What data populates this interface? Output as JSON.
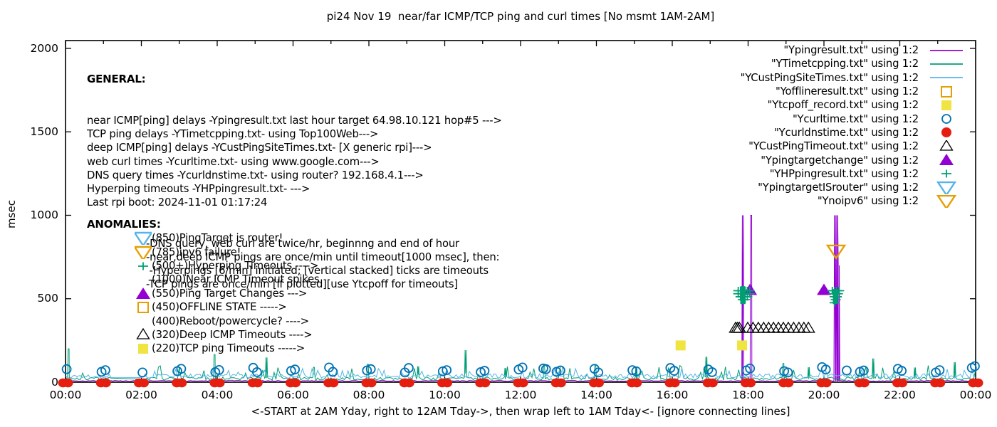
{
  "title": "pi24 Nov 19  near/far ICMP/TCP ping and curl times [No msmt 1AM-2AM]",
  "ylabel": "msec",
  "xlabel": "<-START at 2AM Yday, right to 12AM Tday->, then wrap left to 1AM Tday<- [ignore connecting lines]",
  "general": {
    "heading": "GENERAL:",
    "lines": [
      "near ICMP[ping] delays -Ypingresult.txt last hour target 64.98.10.121 hop#5 --->",
      "TCP ping delays -YTimetcpping.txt- using Top100Web--->",
      "deep ICMP[ping] delays -YCustPingSiteTimes.txt- [X generic rpi]--->",
      "web curl times -Ycurltime.txt- using www.google.com--->",
      "DNS query times -Ycurldnstime.txt- using router? 192.168.4.1--->",
      "Hyperping timeouts -YHPpingresult.txt- --->",
      "Last rpi boot: 2024-11-01 01:17:24"
    ],
    "notes": [
      "-DNS query, web curl are twice/hr, beginnng and end of hour",
      "-near,deep ICMP pings are once/min until timeout[1000 msec], then:",
      " -Hyperpings [6/min] initiated; [vertical stacked] ticks are timeouts",
      "-TCP pings are once/min [if plotted][use Ytcpoff for timeouts]"
    ]
  },
  "anomalies": {
    "heading": "ANOMALIES:",
    "items": [
      {
        "marker": "tri-down-open",
        "color": "#56b4e9",
        "text": "(850)PingTarget is router!"
      },
      {
        "marker": "tri-down-open",
        "color": "#e69f00",
        "text": "(785)ipv6 failure!"
      },
      {
        "marker": "plus",
        "color": "#009e73",
        "text": "(500+)Hyperping Timeouts ---->"
      },
      {
        "marker": "none",
        "color": "",
        "text": "(1000)Near ICMP Timeout spikes"
      },
      {
        "marker": "tri-up-fill",
        "color": "#9400d3",
        "text": "(550)Ping Target Changes --->"
      },
      {
        "marker": "square-open",
        "color": "#e69f00",
        "text": "(450)OFFLINE STATE ----->"
      },
      {
        "marker": "none",
        "color": "",
        "text": "(400)Reboot/powercycle? ---->"
      },
      {
        "marker": "tri-up-open",
        "color": "#000000",
        "text": "(320)Deep ICMP Timeouts ---->"
      },
      {
        "marker": "square-fill",
        "color": "#f0e442",
        "text": "(220)TCP ping Timeouts ----->"
      }
    ]
  },
  "legend": {
    "rows": [
      {
        "label": "\"Ypingresult.txt\" using 1:2"
      },
      {
        "label": "\"YTimetcpping.txt\" using 1:2"
      },
      {
        "label": "\"YCustPingSiteTimes.txt\" using 1:2"
      },
      {
        "label": "\"Yofflineresult.txt\" using 1:2"
      },
      {
        "label": "\"Ytcpoff_record.txt\" using 1:2"
      },
      {
        "label": "\"Ycurltime.txt\" using 1:2"
      },
      {
        "label": "\"Ycurldnstime.txt\" using 1:2"
      },
      {
        "label": "\"YCustPingTimeout.txt\" using 1:2"
      },
      {
        "label": "\"Ypingtargetchange\" using 1:2"
      },
      {
        "label": "\"YHPpingresult.txt\" using 1:2"
      },
      {
        "label": "\"YpingtargetISrouter\" using 1:2"
      },
      {
        "label": "\"Ynoipv6\" using 1:2"
      }
    ]
  },
  "chart_data": {
    "type": "line",
    "x_axis": {
      "range_hours": [
        0,
        24
      ],
      "tick_labels": [
        "00:00",
        "02:00",
        "04:00",
        "06:00",
        "08:00",
        "10:00",
        "12:00",
        "14:00",
        "16:00",
        "18:00",
        "20:00",
        "22:00",
        "00:00"
      ],
      "major_tick_every_hours": 2,
      "minor_tick_every_hours": 1
    },
    "y_axis": {
      "label": "msec",
      "range": [
        0,
        2000
      ],
      "ticks": [
        0,
        500,
        1000,
        1500,
        2000
      ]
    },
    "grid": false,
    "legend_position": "top-right",
    "series": [
      {
        "name": "Ypingresult.txt",
        "style": "line",
        "color": "#9400d3",
        "baseline_msec": [
          5,
          11
        ],
        "spikes": [
          [
            17.86,
            1000
          ],
          [
            18.08,
            1000
          ],
          [
            20.29,
            1000
          ],
          [
            20.35,
            1000
          ],
          [
            20.39,
            700
          ]
        ]
      },
      {
        "name": "YTimetcpping.txt",
        "style": "line",
        "color": "#009e73",
        "baseline_msec": [
          12,
          30
        ],
        "minor_spike_msec": [
          40,
          100
        ],
        "gap_hours": [
          1.25,
          2.0
        ],
        "spikes": [
          [
            0.08,
            200
          ],
          [
            3.93,
            165
          ],
          [
            5.3,
            148
          ],
          [
            6.55,
            88
          ],
          [
            7.97,
            108
          ],
          [
            9.3,
            95
          ],
          [
            10.55,
            192
          ],
          [
            11.6,
            85
          ],
          [
            12.62,
            95
          ],
          [
            13.97,
            102
          ],
          [
            15.05,
            88
          ],
          [
            16.9,
            152
          ],
          [
            18.93,
            112
          ],
          [
            19.6,
            90
          ],
          [
            21.3,
            142
          ],
          [
            22.4,
            88
          ],
          [
            23.45,
            120
          ]
        ]
      },
      {
        "name": "YCustPingSiteTimes.txt",
        "style": "line",
        "color": "#56b4e9",
        "baseline_msec": [
          24,
          50
        ],
        "minor_spike_msec": [
          55,
          85
        ],
        "gap_hours": [
          1.25,
          2.0
        ],
        "spikes": []
      },
      {
        "name": "Yofflineresult.txt",
        "style": "square-open",
        "color": "#e69f00",
        "points": []
      },
      {
        "name": "Ytcpoff_record.txt",
        "style": "square-fill",
        "color": "#f0e442",
        "points": [
          [
            16.22,
            220
          ],
          [
            17.84,
            220
          ]
        ]
      },
      {
        "name": "Ycurltime.txt",
        "style": "circle-open",
        "color": "#0072b2",
        "points": [
          [
            0.03,
            78
          ],
          [
            0.95,
            62
          ],
          [
            1.05,
            72
          ],
          [
            2.03,
            58
          ],
          [
            2.95,
            66
          ],
          [
            3.05,
            80
          ],
          [
            3.95,
            60
          ],
          [
            4.05,
            73
          ],
          [
            4.95,
            86
          ],
          [
            5.05,
            60
          ],
          [
            5.95,
            68
          ],
          [
            6.05,
            76
          ],
          [
            6.95,
            88
          ],
          [
            7.05,
            62
          ],
          [
            7.95,
            70
          ],
          [
            8.05,
            78
          ],
          [
            8.95,
            58
          ],
          [
            9.05,
            85
          ],
          [
            9.95,
            65
          ],
          [
            10.05,
            72
          ],
          [
            10.95,
            60
          ],
          [
            11.05,
            68
          ],
          [
            11.95,
            76
          ],
          [
            12.05,
            88
          ],
          [
            12.6,
            82
          ],
          [
            12.67,
            78
          ],
          [
            12.95,
            62
          ],
          [
            13.05,
            70
          ],
          [
            13.95,
            80
          ],
          [
            14.05,
            58
          ],
          [
            14.95,
            72
          ],
          [
            15.05,
            65
          ],
          [
            15.95,
            85
          ],
          [
            16.05,
            68
          ],
          [
            16.95,
            76
          ],
          [
            17.05,
            60
          ],
          [
            17.95,
            70
          ],
          [
            18.05,
            82
          ],
          [
            18.95,
            66
          ],
          [
            19.05,
            58
          ],
          [
            19.95,
            90
          ],
          [
            20.05,
            76
          ],
          [
            20.6,
            70
          ],
          [
            20.95,
            62
          ],
          [
            21.05,
            70
          ],
          [
            21.95,
            80
          ],
          [
            22.05,
            68
          ],
          [
            22.95,
            58
          ],
          [
            23.05,
            72
          ],
          [
            23.9,
            86
          ],
          [
            23.98,
            96
          ]
        ]
      },
      {
        "name": "Ycurldnstime.txt",
        "style": "dot-double",
        "color": "#e51e10",
        "points": [
          [
            0,
            0
          ],
          [
            1,
            0
          ],
          [
            2,
            0
          ],
          [
            3,
            0
          ],
          [
            4,
            0
          ],
          [
            5,
            0
          ],
          [
            6,
            0
          ],
          [
            7,
            0
          ],
          [
            8,
            0
          ],
          [
            9,
            0
          ],
          [
            10,
            0
          ],
          [
            11,
            0
          ],
          [
            12,
            0
          ],
          [
            13,
            0
          ],
          [
            14,
            0
          ],
          [
            15,
            0
          ],
          [
            16,
            0
          ],
          [
            17,
            0
          ],
          [
            18,
            0
          ],
          [
            19,
            0
          ],
          [
            20,
            0
          ],
          [
            21,
            0
          ],
          [
            22,
            0
          ],
          [
            23,
            0
          ],
          [
            24,
            0
          ]
        ]
      },
      {
        "name": "YCustPingTimeout.txt",
        "style": "tri-up-open",
        "color": "#000000",
        "points": [
          [
            17.67,
            320
          ],
          [
            17.72,
            320
          ],
          [
            17.77,
            320
          ],
          [
            17.99,
            320
          ],
          [
            18.13,
            320
          ],
          [
            18.27,
            320
          ],
          [
            18.41,
            320
          ],
          [
            18.54,
            320
          ],
          [
            18.67,
            320
          ],
          [
            18.8,
            320
          ],
          [
            18.93,
            320
          ],
          [
            19.06,
            320
          ],
          [
            19.2,
            320
          ],
          [
            19.34,
            320
          ],
          [
            19.47,
            320
          ],
          [
            19.59,
            320
          ]
        ]
      },
      {
        "name": "Ypingtargetchange",
        "style": "tri-up-fill",
        "color": "#9400d3",
        "points": [
          [
            18.05,
            552
          ],
          [
            20.0,
            552
          ]
        ]
      },
      {
        "name": "YHPpingresult.txt",
        "style": "plus",
        "color": "#009e73",
        "points": [
          [
            17.74,
            548
          ],
          [
            17.8,
            548
          ],
          [
            17.86,
            548
          ],
          [
            17.92,
            548
          ],
          [
            17.98,
            548
          ],
          [
            18.04,
            548
          ],
          [
            17.74,
            530
          ],
          [
            17.8,
            530
          ],
          [
            17.92,
            530
          ],
          [
            18.04,
            530
          ],
          [
            17.8,
            512
          ],
          [
            17.86,
            512
          ],
          [
            17.98,
            512
          ],
          [
            17.86,
            494
          ],
          [
            17.92,
            494
          ],
          [
            20.22,
            548
          ],
          [
            20.28,
            548
          ],
          [
            20.34,
            548
          ],
          [
            20.4,
            548
          ],
          [
            20.25,
            530
          ],
          [
            20.31,
            530
          ],
          [
            20.37,
            530
          ],
          [
            20.28,
            512
          ],
          [
            20.34,
            512
          ],
          [
            20.31,
            494
          ],
          [
            20.28,
            476
          ]
        ],
        "stacked_tick_bars": [
          [
            17.86,
            468,
            575
          ],
          [
            20.3,
            468,
            558
          ]
        ]
      },
      {
        "name": "YpingtargetISrouter",
        "style": "tri-down-open",
        "color": "#56b4e9",
        "points": []
      },
      {
        "name": "Ynoipv6",
        "style": "tri-down-open",
        "color": "#e69f00",
        "points": [
          [
            20.32,
            785
          ]
        ]
      }
    ]
  }
}
